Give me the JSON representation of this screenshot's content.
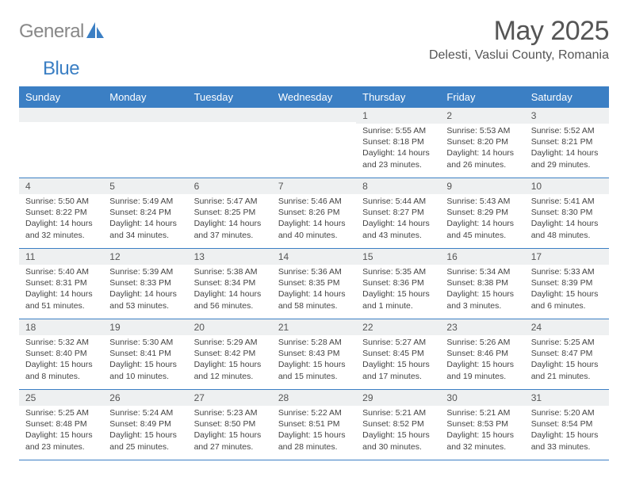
{
  "brand": {
    "text1": "General",
    "text2": "Blue"
  },
  "title": "May 2025",
  "location": "Delesti, Vaslui County, Romania",
  "colors": {
    "header_bg": "#3b7fc4",
    "header_text": "#ffffff",
    "daynum_bg": "#eef0f1",
    "text": "#444444",
    "title_text": "#555555",
    "week_border": "#3b7fc4"
  },
  "fonts": {
    "title_size": 34,
    "location_size": 16,
    "dayhead_size": 13,
    "body_size": 10.5
  },
  "day_names": [
    "Sunday",
    "Monday",
    "Tuesday",
    "Wednesday",
    "Thursday",
    "Friday",
    "Saturday"
  ],
  "weeks": [
    [
      {
        "n": "",
        "sr": "",
        "ss": "",
        "dl": ""
      },
      {
        "n": "",
        "sr": "",
        "ss": "",
        "dl": ""
      },
      {
        "n": "",
        "sr": "",
        "ss": "",
        "dl": ""
      },
      {
        "n": "",
        "sr": "",
        "ss": "",
        "dl": ""
      },
      {
        "n": "1",
        "sr": "Sunrise: 5:55 AM",
        "ss": "Sunset: 8:18 PM",
        "dl": "Daylight: 14 hours and 23 minutes."
      },
      {
        "n": "2",
        "sr": "Sunrise: 5:53 AM",
        "ss": "Sunset: 8:20 PM",
        "dl": "Daylight: 14 hours and 26 minutes."
      },
      {
        "n": "3",
        "sr": "Sunrise: 5:52 AM",
        "ss": "Sunset: 8:21 PM",
        "dl": "Daylight: 14 hours and 29 minutes."
      }
    ],
    [
      {
        "n": "4",
        "sr": "Sunrise: 5:50 AM",
        "ss": "Sunset: 8:22 PM",
        "dl": "Daylight: 14 hours and 32 minutes."
      },
      {
        "n": "5",
        "sr": "Sunrise: 5:49 AM",
        "ss": "Sunset: 8:24 PM",
        "dl": "Daylight: 14 hours and 34 minutes."
      },
      {
        "n": "6",
        "sr": "Sunrise: 5:47 AM",
        "ss": "Sunset: 8:25 PM",
        "dl": "Daylight: 14 hours and 37 minutes."
      },
      {
        "n": "7",
        "sr": "Sunrise: 5:46 AM",
        "ss": "Sunset: 8:26 PM",
        "dl": "Daylight: 14 hours and 40 minutes."
      },
      {
        "n": "8",
        "sr": "Sunrise: 5:44 AM",
        "ss": "Sunset: 8:27 PM",
        "dl": "Daylight: 14 hours and 43 minutes."
      },
      {
        "n": "9",
        "sr": "Sunrise: 5:43 AM",
        "ss": "Sunset: 8:29 PM",
        "dl": "Daylight: 14 hours and 45 minutes."
      },
      {
        "n": "10",
        "sr": "Sunrise: 5:41 AM",
        "ss": "Sunset: 8:30 PM",
        "dl": "Daylight: 14 hours and 48 minutes."
      }
    ],
    [
      {
        "n": "11",
        "sr": "Sunrise: 5:40 AM",
        "ss": "Sunset: 8:31 PM",
        "dl": "Daylight: 14 hours and 51 minutes."
      },
      {
        "n": "12",
        "sr": "Sunrise: 5:39 AM",
        "ss": "Sunset: 8:33 PM",
        "dl": "Daylight: 14 hours and 53 minutes."
      },
      {
        "n": "13",
        "sr": "Sunrise: 5:38 AM",
        "ss": "Sunset: 8:34 PM",
        "dl": "Daylight: 14 hours and 56 minutes."
      },
      {
        "n": "14",
        "sr": "Sunrise: 5:36 AM",
        "ss": "Sunset: 8:35 PM",
        "dl": "Daylight: 14 hours and 58 minutes."
      },
      {
        "n": "15",
        "sr": "Sunrise: 5:35 AM",
        "ss": "Sunset: 8:36 PM",
        "dl": "Daylight: 15 hours and 1 minute."
      },
      {
        "n": "16",
        "sr": "Sunrise: 5:34 AM",
        "ss": "Sunset: 8:38 PM",
        "dl": "Daylight: 15 hours and 3 minutes."
      },
      {
        "n": "17",
        "sr": "Sunrise: 5:33 AM",
        "ss": "Sunset: 8:39 PM",
        "dl": "Daylight: 15 hours and 6 minutes."
      }
    ],
    [
      {
        "n": "18",
        "sr": "Sunrise: 5:32 AM",
        "ss": "Sunset: 8:40 PM",
        "dl": "Daylight: 15 hours and 8 minutes."
      },
      {
        "n": "19",
        "sr": "Sunrise: 5:30 AM",
        "ss": "Sunset: 8:41 PM",
        "dl": "Daylight: 15 hours and 10 minutes."
      },
      {
        "n": "20",
        "sr": "Sunrise: 5:29 AM",
        "ss": "Sunset: 8:42 PM",
        "dl": "Daylight: 15 hours and 12 minutes."
      },
      {
        "n": "21",
        "sr": "Sunrise: 5:28 AM",
        "ss": "Sunset: 8:43 PM",
        "dl": "Daylight: 15 hours and 15 minutes."
      },
      {
        "n": "22",
        "sr": "Sunrise: 5:27 AM",
        "ss": "Sunset: 8:45 PM",
        "dl": "Daylight: 15 hours and 17 minutes."
      },
      {
        "n": "23",
        "sr": "Sunrise: 5:26 AM",
        "ss": "Sunset: 8:46 PM",
        "dl": "Daylight: 15 hours and 19 minutes."
      },
      {
        "n": "24",
        "sr": "Sunrise: 5:25 AM",
        "ss": "Sunset: 8:47 PM",
        "dl": "Daylight: 15 hours and 21 minutes."
      }
    ],
    [
      {
        "n": "25",
        "sr": "Sunrise: 5:25 AM",
        "ss": "Sunset: 8:48 PM",
        "dl": "Daylight: 15 hours and 23 minutes."
      },
      {
        "n": "26",
        "sr": "Sunrise: 5:24 AM",
        "ss": "Sunset: 8:49 PM",
        "dl": "Daylight: 15 hours and 25 minutes."
      },
      {
        "n": "27",
        "sr": "Sunrise: 5:23 AM",
        "ss": "Sunset: 8:50 PM",
        "dl": "Daylight: 15 hours and 27 minutes."
      },
      {
        "n": "28",
        "sr": "Sunrise: 5:22 AM",
        "ss": "Sunset: 8:51 PM",
        "dl": "Daylight: 15 hours and 28 minutes."
      },
      {
        "n": "29",
        "sr": "Sunrise: 5:21 AM",
        "ss": "Sunset: 8:52 PM",
        "dl": "Daylight: 15 hours and 30 minutes."
      },
      {
        "n": "30",
        "sr": "Sunrise: 5:21 AM",
        "ss": "Sunset: 8:53 PM",
        "dl": "Daylight: 15 hours and 32 minutes."
      },
      {
        "n": "31",
        "sr": "Sunrise: 5:20 AM",
        "ss": "Sunset: 8:54 PM",
        "dl": "Daylight: 15 hours and 33 minutes."
      }
    ]
  ]
}
